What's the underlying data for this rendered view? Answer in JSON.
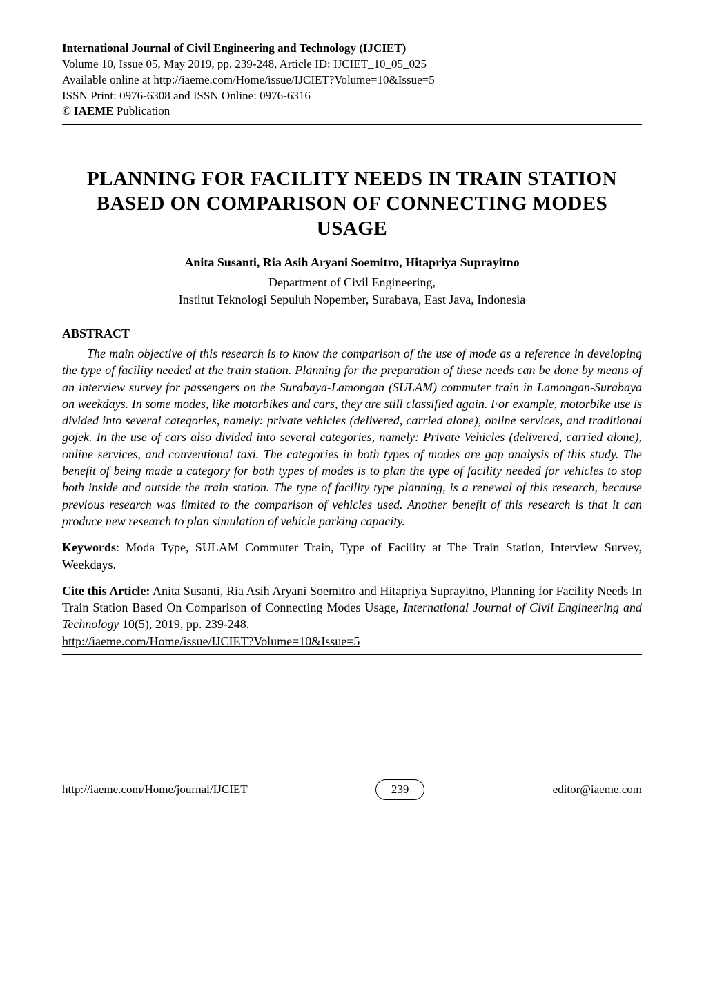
{
  "journal": {
    "name": "International Journal of Civil Engineering and Technology (IJCIET)",
    "volume_issue": "Volume 10, Issue 05, May 2019, pp. 239-248, Article ID: IJCIET_10_05_025",
    "available": "Available online at http://iaeme.com/Home/issue/IJCIET?Volume=10&Issue=5",
    "issn": "ISSN Print: 0976-6308 and ISSN Online: 0976-6316",
    "copyright_symbol": "© IAEME",
    "publication": " Publication"
  },
  "paper": {
    "title": "PLANNING FOR FACILITY NEEDS IN TRAIN STATION BASED ON COMPARISON OF CONNECTING MODES USAGE",
    "authors": "Anita Susanti, Ria Asih Aryani Soemitro, Hitapriya Suprayitno",
    "affiliation_line1": "Department of Civil Engineering,",
    "affiliation_line2": "Institut Teknologi Sepuluh Nopember, Surabaya, East Java, Indonesia"
  },
  "abstract": {
    "heading": "ABSTRACT",
    "body": "The main objective of this research is to know the comparison of the use of mode as a reference in developing the type of facility needed at the train station. Planning for the preparation of these needs can be done by means of an interview survey for passengers on the Surabaya-Lamongan (SULAM) commuter train in Lamongan-Surabaya on weekdays. In some modes, like motorbikes and cars, they are still classified again. For example, motorbike use is divided into several categories, namely: private vehicles (delivered, carried alone), online services, and traditional gojek. In the use of cars also divided into several categories, namely: Private Vehicles (delivered, carried alone), online services, and conventional taxi. The categories in both types of modes are gap analysis of this study. The benefit of being made a category for both types of modes is to plan the type of facility needed for vehicles to stop both inside and outside the train station. The type of facility type planning, is a renewal of this research, because previous research was limited to the comparison of vehicles used. Another benefit of this research is that it can produce new research to plan simulation of vehicle parking capacity."
  },
  "keywords": {
    "label": "Keywords",
    "text": ": Moda Type, SULAM Commuter Train, Type of Facility at The Train Station, Interview Survey, Weekdays."
  },
  "cite": {
    "label": "Cite this Article:",
    "prefix": " Anita Susanti, Ria Asih Aryani Soemitro and Hitapriya Suprayitno, Planning for Facility Needs In Train Station Based On Comparison of Connecting Modes Usage, ",
    "journal": "International Journal of Civil Engineering and Technology",
    "suffix": " 10(5), 2019, pp. 239-248.",
    "link": "http://iaeme.com/Home/issue/IJCIET?Volume=10&Issue=5"
  },
  "footer": {
    "left": "http://iaeme.com/Home/journal/IJCIET",
    "page": "239",
    "right": "editor@iaeme.com"
  },
  "colors": {
    "text": "#000000",
    "background": "#ffffff",
    "divider": "#000000"
  }
}
